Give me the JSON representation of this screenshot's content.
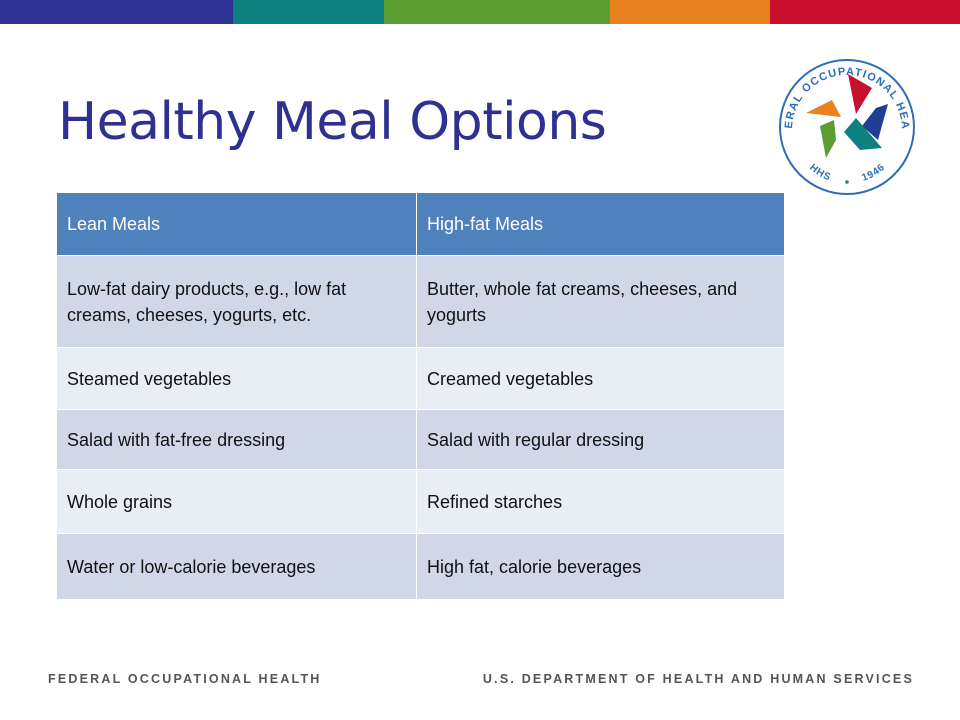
{
  "colors": {
    "title": "#2e3192",
    "header_bg": "#4f81bd",
    "row_odd_bg": "#d0d8e8",
    "row_even_bg": "#e9edf4",
    "topbar": [
      "#2e3192",
      "#0d8080",
      "#5c9e31",
      "#e8821e",
      "#c8102e"
    ]
  },
  "slide": {
    "title": "Healthy Meal Options"
  },
  "logo": {
    "icon": "federal-occupational-health-star-seal",
    "ring_text_top": "FEDERAL OCCUPATIONAL HEALTH",
    "ring_text_bottom_left": "HHS",
    "ring_text_bottom_right": "1946"
  },
  "table": {
    "headers": [
      "Lean Meals",
      "High-fat Meals"
    ],
    "rows": [
      [
        "Low-fat  dairy products, e.g., low fat creams, cheeses, yogurts, etc.",
        "Butter, whole fat creams, cheeses, and yogurts"
      ],
      [
        "Steamed vegetables",
        "Creamed vegetables"
      ],
      [
        "Salad with fat-free dressing",
        "Salad with regular dressing"
      ],
      [
        "Whole grains",
        "Refined starches"
      ],
      [
        "Water or low-calorie beverages",
        "High fat, calorie beverages"
      ]
    ]
  },
  "footer": {
    "left": "FEDERAL OCCUPATIONAL HEALTH",
    "right": "U.S. DEPARTMENT OF HEALTH AND HUMAN SERVICES"
  }
}
